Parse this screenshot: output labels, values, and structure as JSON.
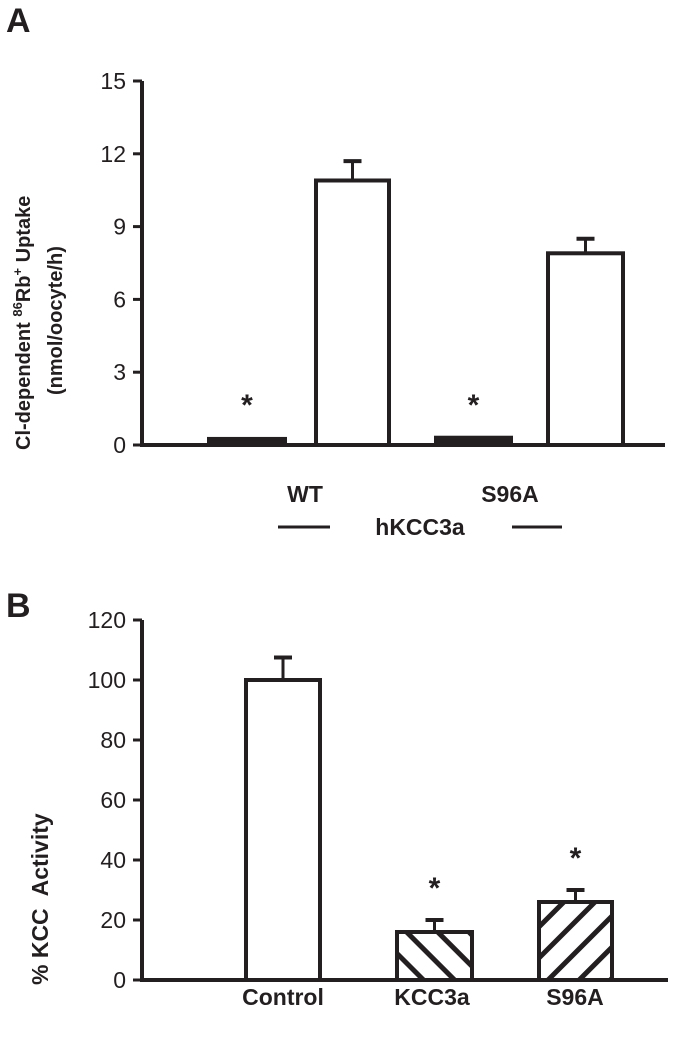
{
  "chart_data": [
    {
      "panel": "A",
      "type": "bar",
      "ylabel_line1": "Cl-dependent ",
      "ylabel_sup1": "86",
      "ylabel_rb": "Rb",
      "ylabel_sup2": "+",
      "ylabel_rest": " Uptake",
      "ylabel_line2": "(nmol/oocyte/h)",
      "ylim": [
        0,
        15
      ],
      "yticks": [
        "0",
        "3",
        "6",
        "9",
        "12",
        "15"
      ],
      "categories": [
        "WT",
        "S96A"
      ],
      "group_label": "hKCC3a",
      "bars": [
        {
          "group": "WT",
          "fill": "black",
          "value": 0.25,
          "error": 0,
          "star": "*"
        },
        {
          "group": "WT",
          "fill": "white",
          "value": 10.9,
          "error": 0.8,
          "star": ""
        },
        {
          "group": "S96A",
          "fill": "black",
          "value": 0.3,
          "error": 0,
          "star": "*"
        },
        {
          "group": "S96A",
          "fill": "white",
          "value": 7.9,
          "error": 0.6,
          "star": ""
        }
      ]
    },
    {
      "panel": "B",
      "type": "bar",
      "ylabel": "% KCC  Activity",
      "ylim": [
        0,
        120
      ],
      "yticks": [
        "0",
        "20",
        "40",
        "60",
        "80",
        "100",
        "120"
      ],
      "categories": [
        "Control",
        "KCC3a",
        "S96A"
      ],
      "bars": [
        {
          "fill": "white",
          "value": 100,
          "error": 7.5,
          "star": ""
        },
        {
          "fill": "hatch-back",
          "value": 16,
          "error": 4,
          "star": "*"
        },
        {
          "fill": "hatch-fwd",
          "value": 26,
          "error": 4,
          "star": "*"
        }
      ]
    }
  ]
}
